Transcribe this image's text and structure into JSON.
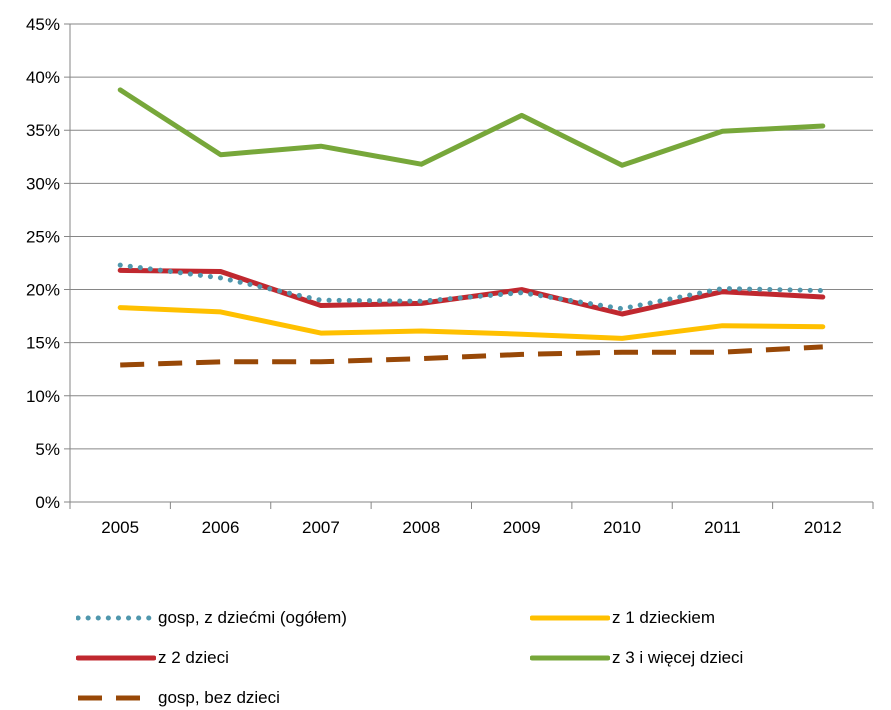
{
  "chart_data": {
    "type": "line",
    "categories": [
      "2005",
      "2006",
      "2007",
      "2008",
      "2009",
      "2010",
      "2011",
      "2012"
    ],
    "ylim": [
      0,
      45
    ],
    "yticks": [
      0,
      5,
      10,
      15,
      20,
      25,
      30,
      35,
      40,
      45
    ],
    "ytick_labels": [
      "0%",
      "5%",
      "10%",
      "15%",
      "20%",
      "25%",
      "30%",
      "35%",
      "40%",
      "45%"
    ],
    "grid": "horizontal",
    "legend_position": "bottom",
    "series": [
      {
        "name": "gosp, z dziećmi (ogółem)",
        "color": "#4f97ad",
        "style": "dotted",
        "values": [
          22.3,
          21.1,
          19.0,
          18.9,
          19.7,
          18.2,
          20.1,
          19.9
        ]
      },
      {
        "name": "z 1 dzieckiem",
        "color": "#ffc000",
        "style": "solid",
        "values": [
          18.3,
          17.9,
          15.9,
          16.1,
          15.8,
          15.4,
          16.6,
          16.5
        ]
      },
      {
        "name": "z 2 dzieci",
        "color": "#c0282f",
        "style": "solid",
        "values": [
          21.8,
          21.7,
          18.5,
          18.7,
          20.0,
          17.7,
          19.8,
          19.3
        ]
      },
      {
        "name": "z 3 i więcej dzieci",
        "color": "#77a73a",
        "style": "solid",
        "values": [
          38.8,
          32.7,
          33.5,
          31.8,
          36.4,
          31.7,
          34.9,
          35.4
        ]
      },
      {
        "name": "gosp, bez dzieci",
        "color": "#984807",
        "style": "dashed",
        "values": [
          12.9,
          13.2,
          13.2,
          13.5,
          13.9,
          14.1,
          14.1,
          14.6
        ]
      }
    ]
  }
}
